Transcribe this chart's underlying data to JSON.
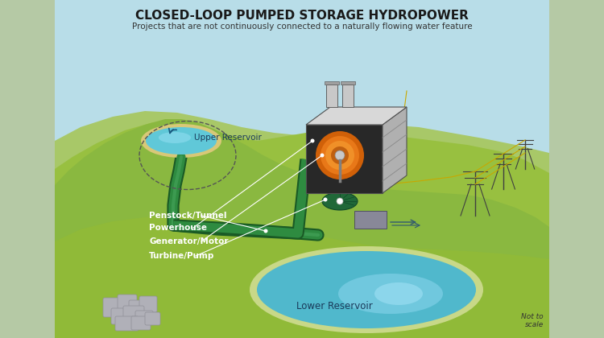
{
  "title": "CLOSED-LOOP PUMPED STORAGE HYDROPOWER",
  "subtitle": "Projects that are not continuously connected to a naturally flowing water feature",
  "sky_color": "#b8dde8",
  "side_panel_color": "#b5c9a5",
  "hill_far_color": "#9eba6a",
  "hill_mid_color": "#8ab540",
  "hill_near_color": "#7aaa30",
  "ground_flat_color": "#9ac848",
  "upper_res_water": "#60c8d8",
  "lower_res_water": "#50b8cc",
  "lower_res_edge": "#d8e8b0",
  "penstock_color": "#2e8b40",
  "penstock_dark": "#1a5a25",
  "powerhouse_face": "#c8c8c8",
  "powerhouse_top": "#e0e0e0",
  "powerhouse_right": "#a8a8a8",
  "powerhouse_dark": "#303030",
  "gen_orange1": "#e87820",
  "gen_orange2": "#c05010",
  "gen_center": "#d8d8d8",
  "turbine_green": "#2a8050",
  "label_color": "#ffffff",
  "tower_color": "#404040",
  "wire_color": "#c8a800",
  "rock_color": "#b0b0b8",
  "labels": [
    "Penstock/Tunnel",
    "Powerhouse",
    "Generator/Motor",
    "Turbine/Pump"
  ],
  "upper_label": "Upper Reservoir",
  "lower_label": "Lower Reservoir",
  "not_to_scale": "Not to\nscale",
  "title_fontsize": 11,
  "subtitle_fontsize": 7.5,
  "label_fontsize": 7.5
}
